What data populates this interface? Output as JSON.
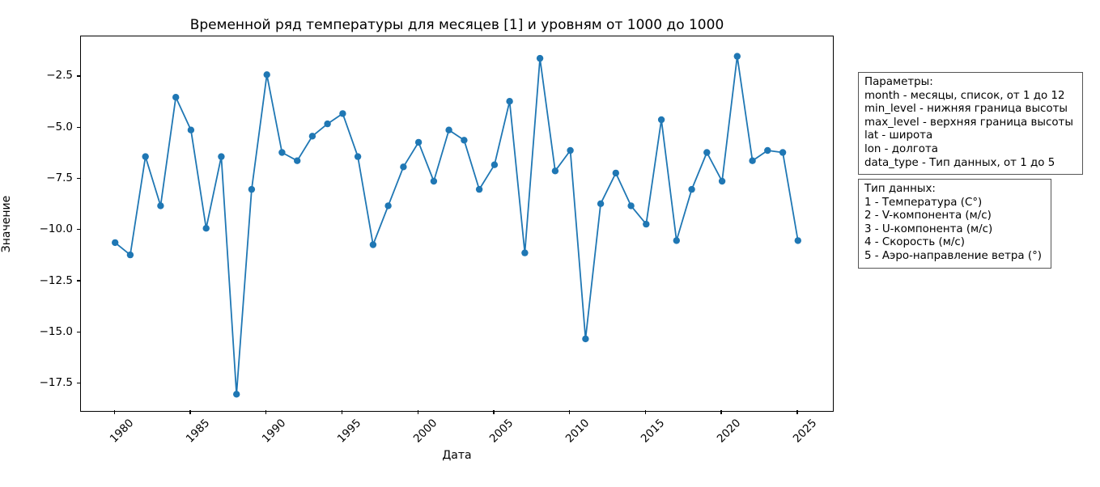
{
  "figure": {
    "title": "Временной ряд температуры для месяцев [1] и уровням от 1000 до 1000",
    "xlabel": "Дата",
    "ylabel": "Значение"
  },
  "chart_data": {
    "type": "line",
    "title": "Временной ряд температуры для месяцев [1] и уровням от 1000 до 1000",
    "xlabel": "Дата",
    "ylabel": "Значение",
    "grid": false,
    "legend": null,
    "line_color": "#1f77b4",
    "marker": "circle",
    "x": [
      1980,
      1981,
      1982,
      1983,
      1984,
      1985,
      1986,
      1987,
      1988,
      1989,
      1990,
      1991,
      1992,
      1993,
      1994,
      1995,
      1996,
      1997,
      1998,
      1999,
      2000,
      2001,
      2002,
      2003,
      2004,
      2005,
      2006,
      2007,
      2008,
      2009,
      2010,
      2011,
      2012,
      2013,
      2014,
      2015,
      2016,
      2017,
      2018,
      2019,
      2020,
      2021,
      2022,
      2023,
      2024,
      2025
    ],
    "y": [
      -10.6,
      -11.2,
      -6.4,
      -8.8,
      -3.5,
      -5.1,
      -9.9,
      -6.4,
      -18.0,
      -8.0,
      -2.4,
      -6.2,
      -6.6,
      -5.4,
      -4.8,
      -4.3,
      -6.4,
      -10.7,
      -8.8,
      -6.9,
      -5.7,
      -7.6,
      -5.1,
      -5.6,
      -8.0,
      -6.8,
      -3.7,
      -11.1,
      -1.6,
      -7.1,
      -6.1,
      -15.3,
      -8.7,
      -7.2,
      -8.8,
      -9.7,
      -4.6,
      -10.5,
      -8.0,
      -6.2,
      -7.6,
      -1.5,
      -6.6,
      -6.1,
      -6.2,
      -10.5
    ],
    "xlim": [
      1977.75,
      2027.25
    ],
    "ylim": [
      -18.78,
      -0.53
    ],
    "xticks": [
      1980,
      1985,
      1990,
      1995,
      2000,
      2005,
      2010,
      2015,
      2020,
      2025
    ],
    "xtick_labels": [
      "1980",
      "1985",
      "1990",
      "1995",
      "2000",
      "2005",
      "2010",
      "2015",
      "2020",
      "2025"
    ],
    "yticks": [
      -2.5,
      -5.0,
      -7.5,
      -10.0,
      -12.5,
      -15.0,
      -17.5
    ],
    "ytick_labels": [
      "−2.5",
      "−5.0",
      "−7.5",
      "−10.0",
      "−12.5",
      "−15.0",
      "−17.5"
    ]
  },
  "annotations": {
    "params_box": {
      "lines": [
        "Параметры:",
        "month - месяцы, список, от 1 до 12",
        "min_level - нижняя граница высоты",
        "max_level - верхняя граница высоты",
        "lat - широта",
        "lon - долгота",
        "data_type - Тип данных, от 1 до 5"
      ]
    },
    "types_box": {
      "lines": [
        "Тип данных:",
        "1 - Температура (C°)",
        "2 - V-компонента (м/с)",
        "3 - U-компонента (м/с)",
        "4 - Скорость (м/с)",
        "5 - Аэро-направление ветра (°)"
      ]
    }
  }
}
